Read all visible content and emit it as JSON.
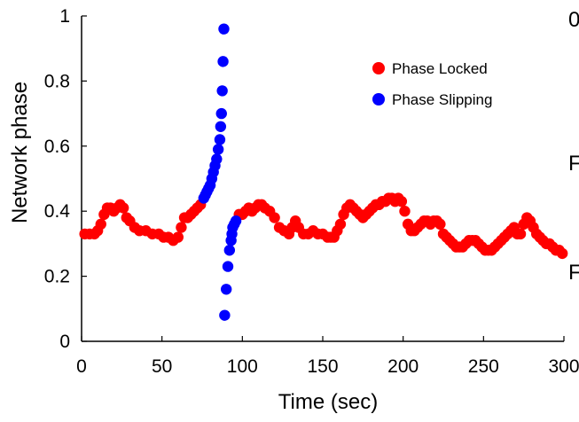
{
  "chart_data": {
    "type": "scatter",
    "xlabel": "Time (sec)",
    "ylabel": "Network  phase",
    "xlim": [
      0,
      300
    ],
    "ylim": [
      0,
      1
    ],
    "xticks": [
      0,
      50,
      100,
      150,
      200,
      250,
      300
    ],
    "yticks": [
      0,
      0.2,
      0.4,
      0.6,
      0.8,
      1
    ],
    "xtick_labels": [
      "0",
      "50",
      "100",
      "150",
      "200",
      "250",
      "300"
    ],
    "ytick_labels": [
      "0",
      "0.2",
      "0.4",
      "0.6",
      "0.8",
      "1"
    ],
    "grid": false,
    "legend_position": "top-right",
    "series": [
      {
        "name": "Phase Locked",
        "color": "#ff0000",
        "points": [
          [
            2,
            0.33
          ],
          [
            5,
            0.33
          ],
          [
            8,
            0.33
          ],
          [
            10,
            0.34
          ],
          [
            12,
            0.36
          ],
          [
            14,
            0.39
          ],
          [
            16,
            0.41
          ],
          [
            18,
            0.41
          ],
          [
            20,
            0.4
          ],
          [
            22,
            0.41
          ],
          [
            24,
            0.42
          ],
          [
            26,
            0.41
          ],
          [
            28,
            0.38
          ],
          [
            30,
            0.37
          ],
          [
            33,
            0.35
          ],
          [
            36,
            0.34
          ],
          [
            40,
            0.34
          ],
          [
            44,
            0.33
          ],
          [
            48,
            0.33
          ],
          [
            51,
            0.32
          ],
          [
            54,
            0.32
          ],
          [
            57,
            0.31
          ],
          [
            60,
            0.32
          ],
          [
            62,
            0.35
          ],
          [
            64,
            0.38
          ],
          [
            66,
            0.38
          ],
          [
            68,
            0.39
          ],
          [
            70,
            0.4
          ],
          [
            72,
            0.41
          ],
          [
            74,
            0.42
          ],
          [
            98,
            0.39
          ],
          [
            100,
            0.39
          ],
          [
            102,
            0.4
          ],
          [
            104,
            0.41
          ],
          [
            106,
            0.4
          ],
          [
            108,
            0.41
          ],
          [
            110,
            0.42
          ],
          [
            112,
            0.42
          ],
          [
            114,
            0.41
          ],
          [
            117,
            0.4
          ],
          [
            120,
            0.38
          ],
          [
            123,
            0.35
          ],
          [
            126,
            0.34
          ],
          [
            129,
            0.33
          ],
          [
            131,
            0.35
          ],
          [
            133,
            0.37
          ],
          [
            135,
            0.35
          ],
          [
            138,
            0.33
          ],
          [
            141,
            0.33
          ],
          [
            144,
            0.34
          ],
          [
            147,
            0.33
          ],
          [
            150,
            0.33
          ],
          [
            153,
            0.32
          ],
          [
            155,
            0.32
          ],
          [
            157,
            0.32
          ],
          [
            159,
            0.34
          ],
          [
            161,
            0.36
          ],
          [
            163,
            0.39
          ],
          [
            165,
            0.41
          ],
          [
            167,
            0.42
          ],
          [
            169,
            0.41
          ],
          [
            171,
            0.4
          ],
          [
            173,
            0.39
          ],
          [
            175,
            0.38
          ],
          [
            177,
            0.39
          ],
          [
            179,
            0.4
          ],
          [
            181,
            0.41
          ],
          [
            183,
            0.42
          ],
          [
            185,
            0.42
          ],
          [
            187,
            0.43
          ],
          [
            189,
            0.43
          ],
          [
            191,
            0.44
          ],
          [
            193,
            0.44
          ],
          [
            195,
            0.43
          ],
          [
            197,
            0.44
          ],
          [
            199,
            0.43
          ],
          [
            201,
            0.4
          ],
          [
            203,
            0.36
          ],
          [
            205,
            0.34
          ],
          [
            207,
            0.34
          ],
          [
            209,
            0.35
          ],
          [
            211,
            0.36
          ],
          [
            213,
            0.37
          ],
          [
            215,
            0.37
          ],
          [
            217,
            0.36
          ],
          [
            219,
            0.37
          ],
          [
            221,
            0.37
          ],
          [
            223,
            0.36
          ],
          [
            225,
            0.33
          ],
          [
            227,
            0.32
          ],
          [
            229,
            0.31
          ],
          [
            231,
            0.3
          ],
          [
            233,
            0.29
          ],
          [
            235,
            0.29
          ],
          [
            237,
            0.29
          ],
          [
            239,
            0.3
          ],
          [
            241,
            0.31
          ],
          [
            243,
            0.31
          ],
          [
            245,
            0.31
          ],
          [
            247,
            0.3
          ],
          [
            249,
            0.29
          ],
          [
            251,
            0.28
          ],
          [
            253,
            0.28
          ],
          [
            255,
            0.28
          ],
          [
            257,
            0.29
          ],
          [
            259,
            0.3
          ],
          [
            261,
            0.31
          ],
          [
            263,
            0.32
          ],
          [
            265,
            0.33
          ],
          [
            267,
            0.34
          ],
          [
            269,
            0.35
          ],
          [
            271,
            0.33
          ],
          [
            273,
            0.33
          ],
          [
            275,
            0.36
          ],
          [
            277,
            0.38
          ],
          [
            279,
            0.37
          ],
          [
            281,
            0.35
          ],
          [
            283,
            0.33
          ],
          [
            285,
            0.32
          ],
          [
            287,
            0.31
          ],
          [
            289,
            0.3
          ],
          [
            291,
            0.3
          ],
          [
            293,
            0.29
          ],
          [
            295,
            0.28
          ],
          [
            297,
            0.28
          ],
          [
            299,
            0.27
          ]
        ]
      },
      {
        "name": "Phase Slipping",
        "color": "#0000ff",
        "points": [
          [
            76,
            0.44
          ],
          [
            77,
            0.45
          ],
          [
            78,
            0.46
          ],
          [
            79,
            0.47
          ],
          [
            80,
            0.48
          ],
          [
            81,
            0.5
          ],
          [
            82,
            0.52
          ],
          [
            83,
            0.54
          ],
          [
            84,
            0.56
          ],
          [
            85,
            0.59
          ],
          [
            86,
            0.62
          ],
          [
            86.5,
            0.66
          ],
          [
            87,
            0.7
          ],
          [
            87.5,
            0.77
          ],
          [
            88,
            0.86
          ],
          [
            88.5,
            0.96
          ],
          [
            89,
            0.08
          ],
          [
            90,
            0.16
          ],
          [
            91,
            0.23
          ],
          [
            92,
            0.28
          ],
          [
            93,
            0.31
          ],
          [
            93.5,
            0.33
          ],
          [
            94,
            0.35
          ],
          [
            95,
            0.36
          ],
          [
            96,
            0.37
          ]
        ]
      }
    ],
    "edge_text": {
      "top_right": "0",
      "mid_right": "F",
      "low_right": "F"
    }
  }
}
